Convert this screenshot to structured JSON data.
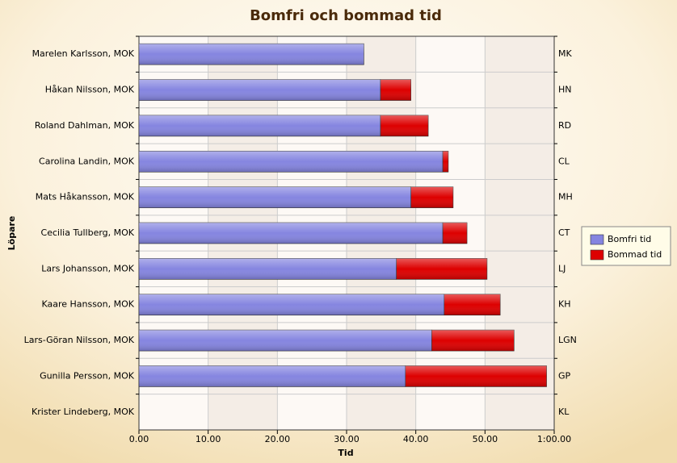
{
  "chart_data": {
    "type": "stacked-hbar",
    "title": "Bomfri och bommad tid",
    "x_label": "Tid",
    "y_label": "Löpare",
    "categories": [
      "Marelen Karlsson, MOK",
      "Håkan Nilsson, MOK",
      "Roland Dahlman, MOK",
      "Carolina Landin, MOK",
      "Mats Håkansson, MOK",
      "Cecilia Tullberg, MOK",
      "Lars Johansson, MOK",
      "Kaare Hansson, MOK",
      "Lars-Göran Nilsson, MOK",
      "Gunilla Persson, MOK",
      "Krister Lindeberg, MOK"
    ],
    "categories_right": [
      "MK",
      "HN",
      "RD",
      "CL",
      "MH",
      "CT",
      "LJ",
      "KH",
      "LGN",
      "GP",
      "KL"
    ],
    "series": [
      {
        "name": "Bomfri tid",
        "color": "#8585e0",
        "values": [
          32.5,
          34.9,
          34.9,
          43.9,
          39.3,
          43.9,
          37.2,
          44.1,
          42.3,
          38.5,
          null
        ]
      },
      {
        "name": "Bommad tid",
        "color": "#dd0000",
        "values": [
          null,
          4.4,
          6.9,
          0.8,
          6.1,
          3.5,
          13.1,
          8.1,
          11.9,
          20.4,
          null
        ]
      }
    ],
    "xlim": [
      0,
      60
    ],
    "xticks": [
      {
        "value": 0,
        "label": "0.00"
      },
      {
        "value": 10,
        "label": "10.00"
      },
      {
        "value": 20,
        "label": "20.00"
      },
      {
        "value": 30,
        "label": "30.00"
      },
      {
        "value": 40,
        "label": "40.00"
      },
      {
        "value": 50,
        "label": "50.00"
      },
      {
        "value": 60,
        "label": "1:00.00"
      }
    ],
    "grid": true,
    "legend": "right"
  }
}
